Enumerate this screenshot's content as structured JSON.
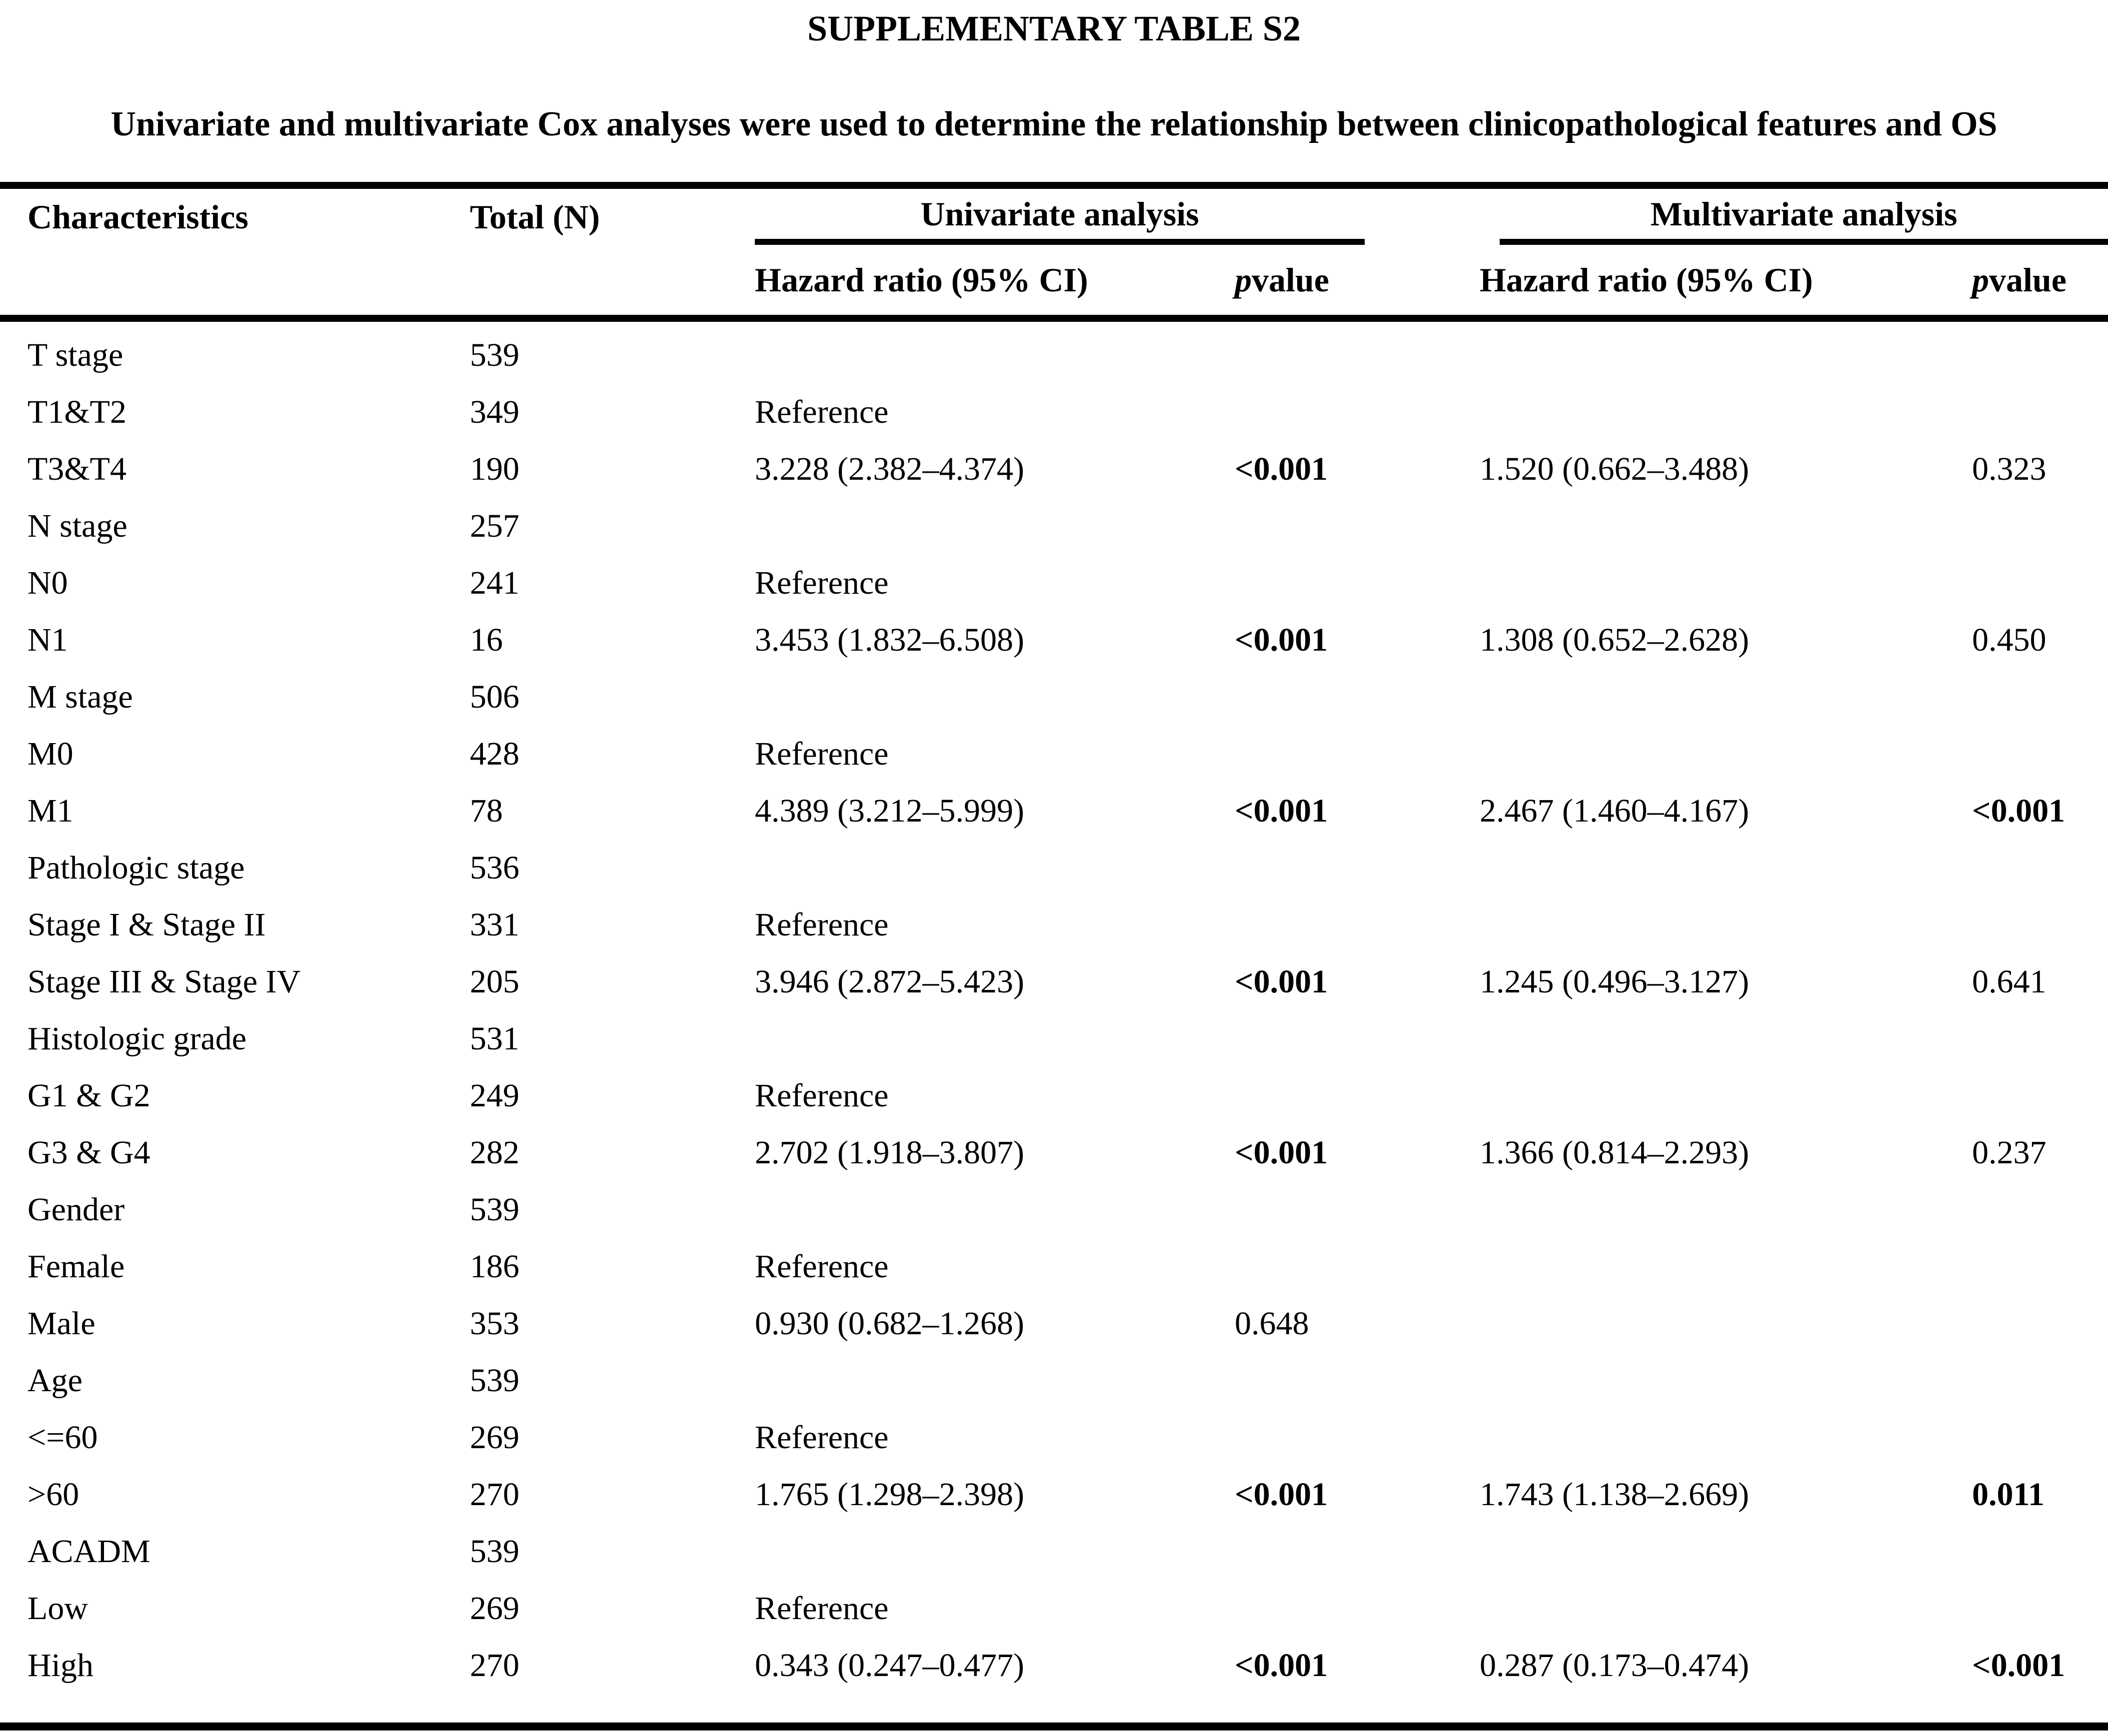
{
  "page": {
    "title": "SUPPLEMENTARY TABLE S2",
    "subtitle": "Univariate and multivariate Cox analyses were used to determine the relationship between clinicopathological features and OS"
  },
  "table": {
    "headers": {
      "characteristics": "Characteristics",
      "total": "Total (N)",
      "univariate_group": "Univariate analysis",
      "multivariate_group": "Multivariate analysis",
      "hazard_ratio_uni": "Hazard ratio (95% CI)",
      "hazard_ratio_multi": "Hazard ratio (95% CI)",
      "p_italic": "p",
      "p_rest": " value"
    },
    "rows": [
      {
        "label": "T stage",
        "total": "539",
        "uni_hr": "",
        "uni_p": "",
        "uni_p_bold": false,
        "multi_hr": "",
        "multi_p": "",
        "multi_p_bold": false
      },
      {
        "label": "T1&T2",
        "total": "349",
        "uni_hr": "Reference",
        "uni_p": "",
        "uni_p_bold": false,
        "multi_hr": "",
        "multi_p": "",
        "multi_p_bold": false
      },
      {
        "label": "T3&T4",
        "total": "190",
        "uni_hr": "3.228 (2.382–4.374)",
        "uni_p": "<0.001",
        "uni_p_bold": true,
        "multi_hr": "1.520 (0.662–3.488)",
        "multi_p": "0.323",
        "multi_p_bold": false
      },
      {
        "label": "N stage",
        "total": "257",
        "uni_hr": "",
        "uni_p": "",
        "uni_p_bold": false,
        "multi_hr": "",
        "multi_p": "",
        "multi_p_bold": false
      },
      {
        "label": "N0",
        "total": "241",
        "uni_hr": "Reference",
        "uni_p": "",
        "uni_p_bold": false,
        "multi_hr": "",
        "multi_p": "",
        "multi_p_bold": false
      },
      {
        "label": "N1",
        "total": "16",
        "uni_hr": "3.453 (1.832–6.508)",
        "uni_p": "<0.001",
        "uni_p_bold": true,
        "multi_hr": "1.308 (0.652–2.628)",
        "multi_p": "0.450",
        "multi_p_bold": false
      },
      {
        "label": "M stage",
        "total": "506",
        "uni_hr": "",
        "uni_p": "",
        "uni_p_bold": false,
        "multi_hr": "",
        "multi_p": "",
        "multi_p_bold": false
      },
      {
        "label": "M0",
        "total": "428",
        "uni_hr": "Reference",
        "uni_p": "",
        "uni_p_bold": false,
        "multi_hr": "",
        "multi_p": "",
        "multi_p_bold": false
      },
      {
        "label": "M1",
        "total": "78",
        "uni_hr": "4.389 (3.212–5.999)",
        "uni_p": "<0.001",
        "uni_p_bold": true,
        "multi_hr": "2.467 (1.460–4.167)",
        "multi_p": "<0.001",
        "multi_p_bold": true
      },
      {
        "label": "Pathologic stage",
        "total": "536",
        "uni_hr": "",
        "uni_p": "",
        "uni_p_bold": false,
        "multi_hr": "",
        "multi_p": "",
        "multi_p_bold": false
      },
      {
        "label": "Stage I & Stage II",
        "total": "331",
        "uni_hr": "Reference",
        "uni_p": "",
        "uni_p_bold": false,
        "multi_hr": "",
        "multi_p": "",
        "multi_p_bold": false
      },
      {
        "label": "Stage III & Stage IV",
        "total": "205",
        "uni_hr": "3.946 (2.872–5.423)",
        "uni_p": "<0.001",
        "uni_p_bold": true,
        "multi_hr": "1.245 (0.496–3.127)",
        "multi_p": "0.641",
        "multi_p_bold": false
      },
      {
        "label": "Histologic grade",
        "total": "531",
        "uni_hr": "",
        "uni_p": "",
        "uni_p_bold": false,
        "multi_hr": "",
        "multi_p": "",
        "multi_p_bold": false
      },
      {
        "label": "G1 & G2",
        "total": "249",
        "uni_hr": "Reference",
        "uni_p": "",
        "uni_p_bold": false,
        "multi_hr": "",
        "multi_p": "",
        "multi_p_bold": false
      },
      {
        "label": "G3 & G4",
        "total": "282",
        "uni_hr": "2.702 (1.918–3.807)",
        "uni_p": "<0.001",
        "uni_p_bold": true,
        "multi_hr": "1.366 (0.814–2.293)",
        "multi_p": "0.237",
        "multi_p_bold": false
      },
      {
        "label": "Gender",
        "total": "539",
        "uni_hr": "",
        "uni_p": "",
        "uni_p_bold": false,
        "multi_hr": "",
        "multi_p": "",
        "multi_p_bold": false
      },
      {
        "label": "Female",
        "total": "186",
        "uni_hr": "Reference",
        "uni_p": "",
        "uni_p_bold": false,
        "multi_hr": "",
        "multi_p": "",
        "multi_p_bold": false
      },
      {
        "label": "Male",
        "total": "353",
        "uni_hr": "0.930 (0.682–1.268)",
        "uni_p": "0.648",
        "uni_p_bold": false,
        "multi_hr": "",
        "multi_p": "",
        "multi_p_bold": false
      },
      {
        "label": "Age",
        "total": "539",
        "uni_hr": "",
        "uni_p": "",
        "uni_p_bold": false,
        "multi_hr": "",
        "multi_p": "",
        "multi_p_bold": false
      },
      {
        "label": "<=60",
        "total": "269",
        "uni_hr": "Reference",
        "uni_p": "",
        "uni_p_bold": false,
        "multi_hr": "",
        "multi_p": "",
        "multi_p_bold": false
      },
      {
        "label": ">60",
        "total": "270",
        "uni_hr": "1.765 (1.298–2.398)",
        "uni_p": "<0.001",
        "uni_p_bold": true,
        "multi_hr": "1.743 (1.138–2.669)",
        "multi_p": "0.011",
        "multi_p_bold": true
      },
      {
        "label": "ACADM",
        "total": "539",
        "uni_hr": "",
        "uni_p": "",
        "uni_p_bold": false,
        "multi_hr": "",
        "multi_p": "",
        "multi_p_bold": false
      },
      {
        "label": "Low",
        "total": "269",
        "uni_hr": "Reference",
        "uni_p": "",
        "uni_p_bold": false,
        "multi_hr": "",
        "multi_p": "",
        "multi_p_bold": false
      },
      {
        "label": "High",
        "total": "270",
        "uni_hr": "0.343 (0.247–0.477)",
        "uni_p": "<0.001",
        "uni_p_bold": true,
        "multi_hr": "0.287 (0.173–0.474)",
        "multi_p": "<0.001",
        "multi_p_bold": true
      }
    ]
  }
}
